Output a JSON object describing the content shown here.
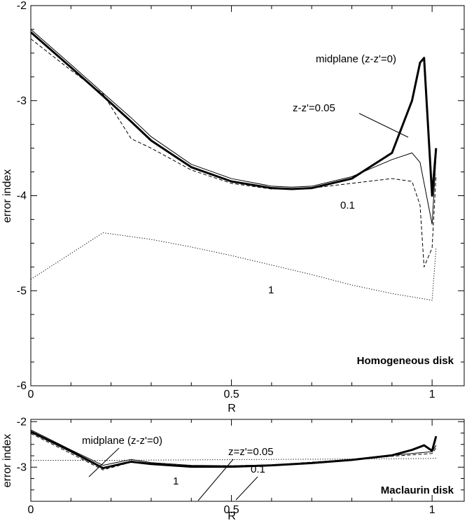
{
  "chart_data": [
    {
      "type": "line",
      "title": "Homogeneous disk",
      "xlabel": "R",
      "ylabel": "error index",
      "xlim": [
        0,
        1.08
      ],
      "ylim": [
        -6,
        -2
      ],
      "xticks": [
        0,
        0.5,
        1
      ],
      "xtick_labels": [
        "0",
        "0.5",
        "1"
      ],
      "yticks": [
        -6,
        -5,
        -4,
        -3,
        -2
      ],
      "ytick_labels": [
        "-6",
        "-5",
        "-4",
        "-3",
        "-2"
      ],
      "grid": false,
      "series": [
        {
          "name": "midplane (z-z'=0)",
          "style": "thick",
          "x": [
            0,
            0.1,
            0.18,
            0.25,
            0.3,
            0.4,
            0.5,
            0.6,
            0.65,
            0.7,
            0.8,
            0.9,
            0.95,
            0.97,
            0.98,
            1.0,
            1.01
          ],
          "y": [
            -2.28,
            -2.65,
            -2.95,
            -3.22,
            -3.42,
            -3.7,
            -3.85,
            -3.92,
            -3.93,
            -3.92,
            -3.82,
            -3.55,
            -3.0,
            -2.6,
            -2.55,
            -4.0,
            -3.5
          ]
        },
        {
          "name": "z-z'=0.05",
          "style": "thin",
          "x": [
            0,
            0.1,
            0.18,
            0.25,
            0.3,
            0.4,
            0.5,
            0.6,
            0.65,
            0.7,
            0.8,
            0.9,
            0.95,
            0.97,
            1.0,
            1.01
          ],
          "y": [
            -2.25,
            -2.62,
            -2.92,
            -3.18,
            -3.38,
            -3.67,
            -3.82,
            -3.9,
            -3.91,
            -3.9,
            -3.8,
            -3.62,
            -3.55,
            -3.65,
            -4.3,
            -3.58
          ]
        },
        {
          "name": "0.1",
          "style": "dashed",
          "x": [
            0,
            0.1,
            0.18,
            0.25,
            0.3,
            0.4,
            0.5,
            0.6,
            0.65,
            0.7,
            0.8,
            0.9,
            0.95,
            0.97,
            0.98,
            1.0,
            1.01
          ],
          "y": [
            -2.35,
            -2.68,
            -2.93,
            -3.4,
            -3.5,
            -3.73,
            -3.87,
            -3.93,
            -3.93,
            -3.92,
            -3.87,
            -3.82,
            -3.85,
            -4.1,
            -4.75,
            -4.55,
            -3.78
          ]
        },
        {
          "name": "1",
          "style": "dotted",
          "x": [
            0,
            0.18,
            0.3,
            0.4,
            0.5,
            0.6,
            0.7,
            0.8,
            0.9,
            1.0,
            1.01
          ],
          "y": [
            -4.88,
            -4.39,
            -4.46,
            -4.54,
            -4.63,
            -4.73,
            -4.83,
            -4.94,
            -5.03,
            -5.1,
            -4.55
          ]
        }
      ],
      "annotations": [
        {
          "text": "midplane (z-z'=0)",
          "series": 0
        },
        {
          "text": "z-z'=0.05",
          "series": 1
        },
        {
          "text": "0.1",
          "series": 2
        },
        {
          "text": "1",
          "series": 3
        },
        {
          "text": "Homogeneous disk",
          "series": -1
        }
      ]
    },
    {
      "type": "line",
      "title": "Maclaurin disk",
      "xlabel": "R",
      "ylabel": "error index",
      "xlim": [
        0,
        1.08
      ],
      "ylim": [
        -3.75,
        -1.95
      ],
      "xticks": [
        0,
        0.5,
        1
      ],
      "xtick_labels": [
        "0",
        "0.5",
        "1"
      ],
      "yticks": [
        -3,
        -2
      ],
      "ytick_labels": [
        "-3",
        "-2"
      ],
      "grid": false,
      "series": [
        {
          "name": "midplane (z-z'=0)",
          "style": "thick",
          "x": [
            0,
            0.1,
            0.18,
            0.25,
            0.3,
            0.4,
            0.5,
            0.6,
            0.7,
            0.8,
            0.9,
            0.95,
            0.98,
            1.0,
            1.01
          ],
          "y": [
            -2.22,
            -2.65,
            -3.02,
            -2.88,
            -2.93,
            -2.99,
            -2.99,
            -2.96,
            -2.91,
            -2.84,
            -2.74,
            -2.62,
            -2.52,
            -2.64,
            -2.32
          ]
        },
        {
          "name": "z=z'=0.05",
          "style": "thin",
          "x": [
            0,
            0.1,
            0.18,
            0.25,
            0.3,
            0.4,
            0.5,
            0.6,
            0.7,
            0.8,
            0.9,
            1.0,
            1.01
          ],
          "y": [
            -2.18,
            -2.62,
            -2.96,
            -2.83,
            -2.9,
            -2.96,
            -2.97,
            -2.95,
            -2.9,
            -2.83,
            -2.74,
            -2.66,
            -2.52
          ]
        },
        {
          "name": "0.1",
          "style": "dashed",
          "x": [
            0,
            0.1,
            0.18,
            0.25,
            0.3,
            0.4,
            0.5,
            0.6,
            0.7,
            0.8,
            0.9,
            1.0,
            1.01
          ],
          "y": [
            -2.26,
            -2.7,
            -3.06,
            -2.89,
            -2.93,
            -2.97,
            -2.97,
            -2.95,
            -2.89,
            -2.83,
            -2.76,
            -2.7,
            -2.58
          ]
        },
        {
          "name": "1",
          "style": "dotted",
          "x": [
            0,
            0.2,
            0.4,
            0.6,
            0.8,
            1.0,
            1.01
          ],
          "y": [
            -2.85,
            -2.85,
            -2.84,
            -2.83,
            -2.82,
            -2.81,
            -2.8
          ]
        }
      ],
      "annotations": [
        {
          "text": "midplane (z-z'=0)",
          "series": 0
        },
        {
          "text": "z=z'=0.05",
          "series": 1
        },
        {
          "text": "0.1",
          "series": 2
        },
        {
          "text": "1",
          "series": 3
        },
        {
          "text": "Maclaurin disk",
          "series": -1
        }
      ]
    }
  ]
}
